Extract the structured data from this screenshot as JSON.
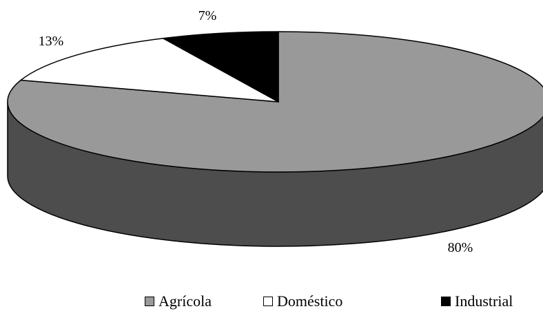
{
  "chart_data": {
    "type": "pie",
    "title": "",
    "categories": [
      "Agrícola",
      "Doméstico",
      "Industrial"
    ],
    "values": [
      80,
      13,
      7
    ],
    "labels": [
      "80%",
      "13%",
      "7%"
    ],
    "colors": [
      "#999999",
      "#ffffff",
      "#000000"
    ],
    "side_color": "#4d4d4d",
    "style": "3d",
    "legend_position": "bottom"
  },
  "legend": {
    "items": [
      {
        "label": "Agrícola",
        "color": "#999999"
      },
      {
        "label": "Doméstico",
        "color": "#ffffff"
      },
      {
        "label": "Industrial",
        "color": "#000000"
      }
    ]
  }
}
